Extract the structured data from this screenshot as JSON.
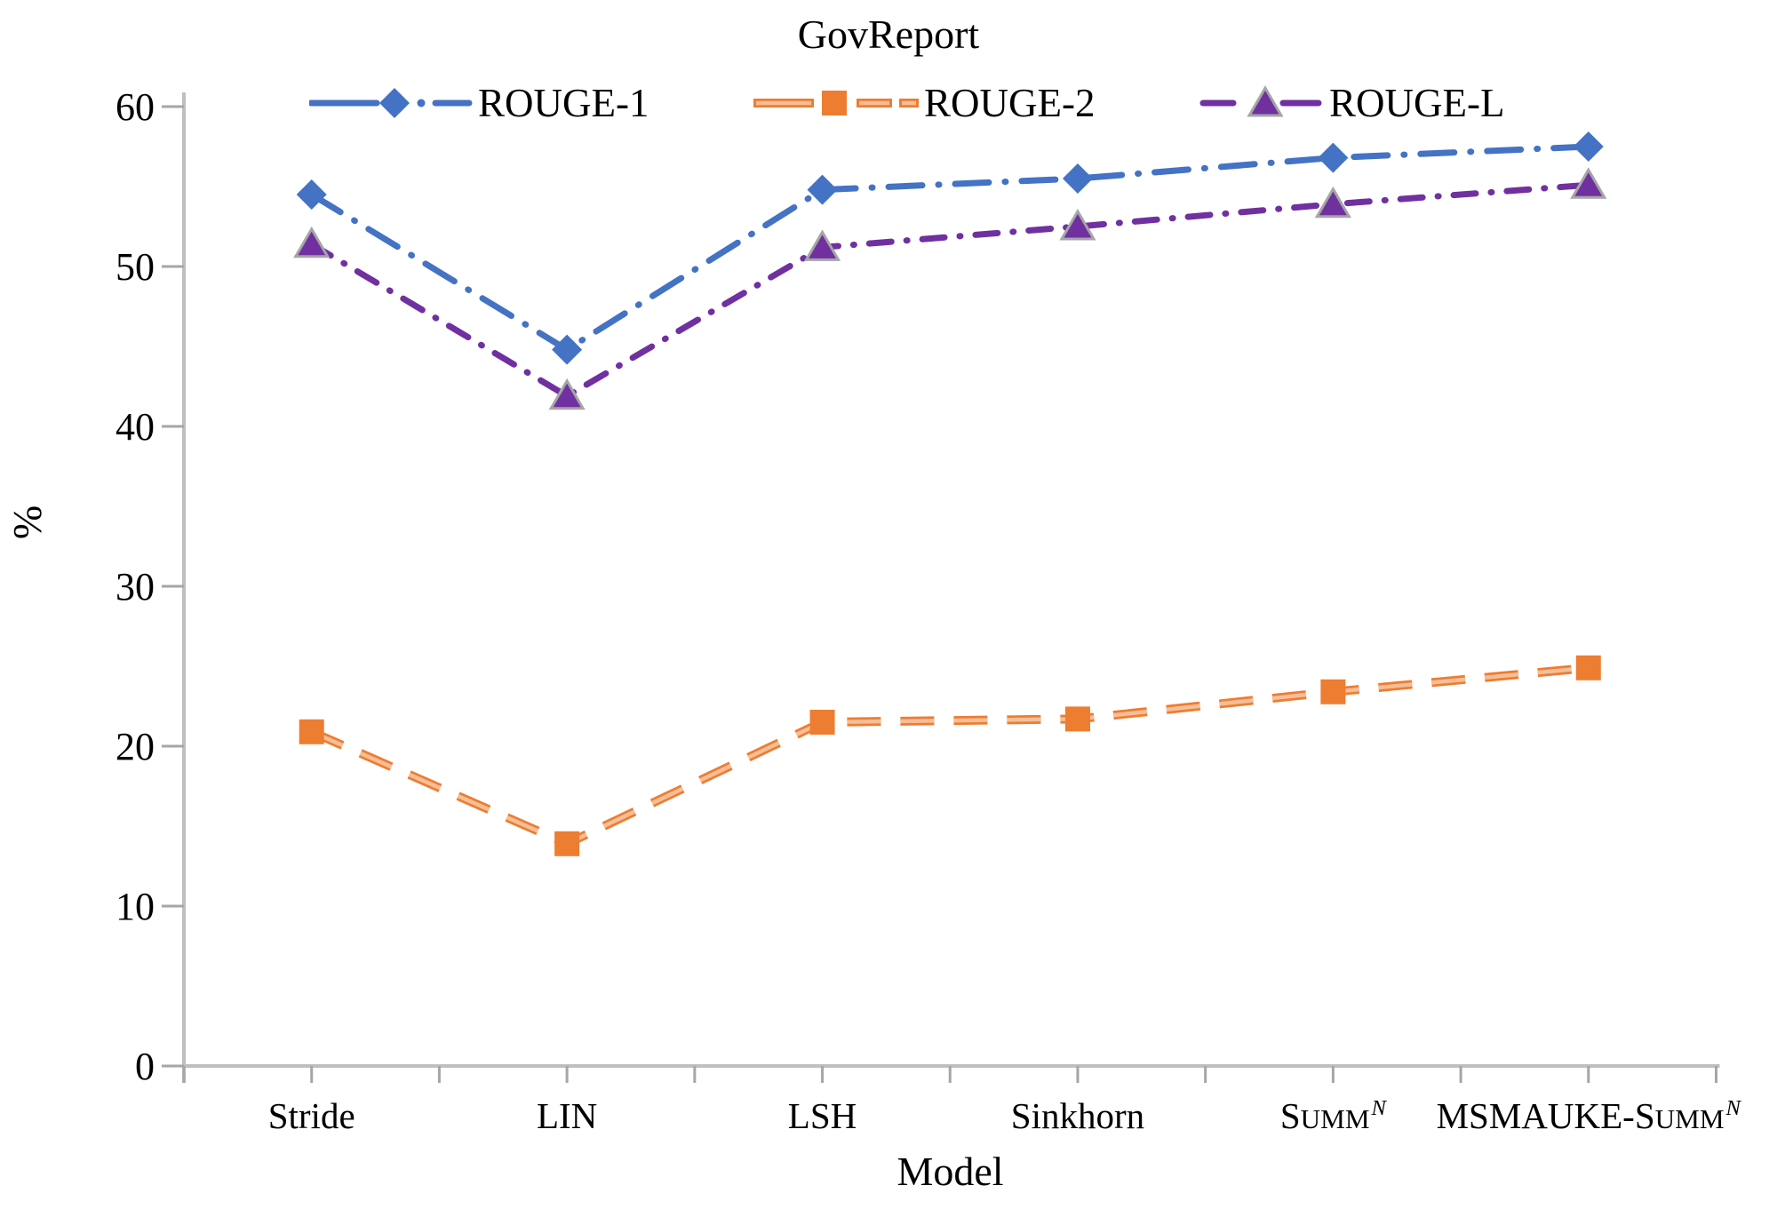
{
  "figure": {
    "title": "GovReport",
    "ylabel": "%",
    "xlabel": "Model"
  },
  "chart_data": {
    "type": "line",
    "title": "GovReport",
    "xlabel": "Model",
    "ylabel": "%",
    "ylim": [
      0,
      60
    ],
    "yticks": [
      0,
      10,
      20,
      30,
      40,
      50,
      60
    ],
    "grid": false,
    "legend_position": "top",
    "background": "#ffffff",
    "axis_color": "#BFBFBF",
    "tick_color": "#A6A6A6",
    "text_color": "#000000",
    "categories": [
      {
        "label": "Stride",
        "parts": [
          {
            "t": "Stride",
            "s": "normal"
          }
        ]
      },
      {
        "label": "LIN",
        "parts": [
          {
            "t": "LIN",
            "s": "normal"
          }
        ]
      },
      {
        "label": "LSH",
        "parts": [
          {
            "t": "LSH",
            "s": "normal"
          }
        ]
      },
      {
        "label": "Sinkhorn",
        "parts": [
          {
            "t": "Sinkhorn",
            "s": "normal"
          }
        ]
      },
      {
        "label": "Summ^N",
        "parts": [
          {
            "t": "S",
            "s": "normal"
          },
          {
            "t": "UMM",
            "s": "smallcaps"
          },
          {
            "t": "N",
            "s": "sup-italic"
          }
        ]
      },
      {
        "label": "MSMAUKE-Summ^N",
        "parts": [
          {
            "t": "MSMAUKE-S",
            "s": "normal"
          },
          {
            "t": "UMM",
            "s": "smallcaps"
          },
          {
            "t": "N",
            "s": "sup-italic"
          }
        ]
      }
    ],
    "series": [
      {
        "name": "ROUGE-1",
        "color": "#4472C4",
        "marker": "diamond",
        "line_style": "dash-dot",
        "values": [
          54.5,
          44.8,
          54.8,
          55.5,
          56.8,
          57.5
        ]
      },
      {
        "name": "ROUGE-2",
        "color": "#ED7D31",
        "inner_color": "#F6BE98",
        "marker": "square",
        "line_style": "outlined-dash",
        "values": [
          20.9,
          13.9,
          21.5,
          21.7,
          23.4,
          24.9
        ]
      },
      {
        "name": "ROUGE-L",
        "color": "#7030A0",
        "marker": "triangle",
        "marker_edge": "#A6A6A6",
        "line_style": "dash-dot",
        "values": [
          51.4,
          41.9,
          51.2,
          52.5,
          53.9,
          55.1
        ]
      }
    ]
  }
}
